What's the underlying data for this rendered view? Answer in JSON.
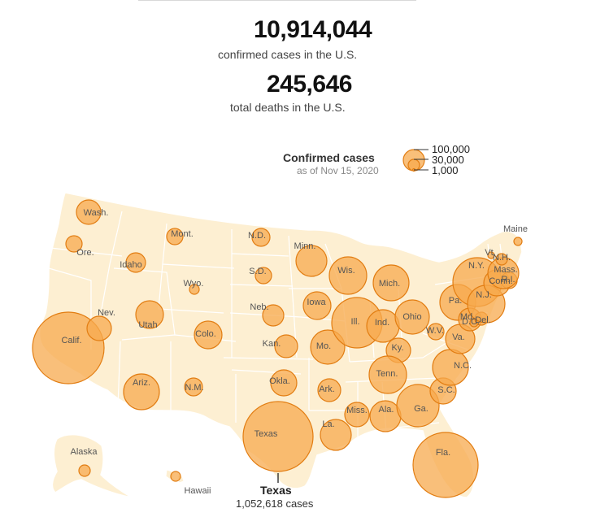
{
  "header": {
    "cases_value": "10,914,044",
    "cases_label": "confirmed cases in the U.S.",
    "deaths_value": "245,646",
    "deaths_label": "total deaths in the U.S."
  },
  "legend": {
    "title": "Confirmed cases",
    "subtitle": "as of Nov 15, 2020",
    "values": [
      "100,000",
      "30,000",
      "1,000"
    ]
  },
  "callout": {
    "state": "Texas",
    "cases": "1,052,618 cases"
  },
  "colors": {
    "land": "#fdefd2",
    "border": "#ffffff",
    "bubble_fill": "#f7a94e",
    "bubble_stroke": "#e27d12"
  },
  "states": [
    {
      "label": "Wash."
    },
    {
      "label": "Ore."
    },
    {
      "label": "Calif."
    },
    {
      "label": "Nev."
    },
    {
      "label": "Idaho"
    },
    {
      "label": "Mont."
    },
    {
      "label": "Wyo."
    },
    {
      "label": "Utah"
    },
    {
      "label": "Ariz."
    },
    {
      "label": "Colo."
    },
    {
      "label": "N.M."
    },
    {
      "label": "N.D."
    },
    {
      "label": "S.D."
    },
    {
      "label": "Neb."
    },
    {
      "label": "Kan."
    },
    {
      "label": "Okla."
    },
    {
      "label": "Texas"
    },
    {
      "label": "Minn."
    },
    {
      "label": "Iowa"
    },
    {
      "label": "Mo."
    },
    {
      "label": "Ark."
    },
    {
      "label": "La."
    },
    {
      "label": "Wis."
    },
    {
      "label": "Ill."
    },
    {
      "label": "Mich."
    },
    {
      "label": "Ind."
    },
    {
      "label": "Ohio"
    },
    {
      "label": "Ky."
    },
    {
      "label": "Tenn."
    },
    {
      "label": "Miss."
    },
    {
      "label": "Ala."
    },
    {
      "label": "Ga."
    },
    {
      "label": "Fla."
    },
    {
      "label": "S.C."
    },
    {
      "label": "N.C."
    },
    {
      "label": "Va."
    },
    {
      "label": "W.V."
    },
    {
      "label": "Pa."
    },
    {
      "label": "N.Y."
    },
    {
      "label": "Md."
    },
    {
      "label": "D.C."
    },
    {
      "label": "Del."
    },
    {
      "label": "N.J."
    },
    {
      "label": "Conn."
    },
    {
      "label": "R.I."
    },
    {
      "label": "Mass."
    },
    {
      "label": "Vt."
    },
    {
      "label": "N.H."
    },
    {
      "label": "Maine"
    },
    {
      "label": "Alaska"
    },
    {
      "label": "Hawaii"
    }
  ]
}
